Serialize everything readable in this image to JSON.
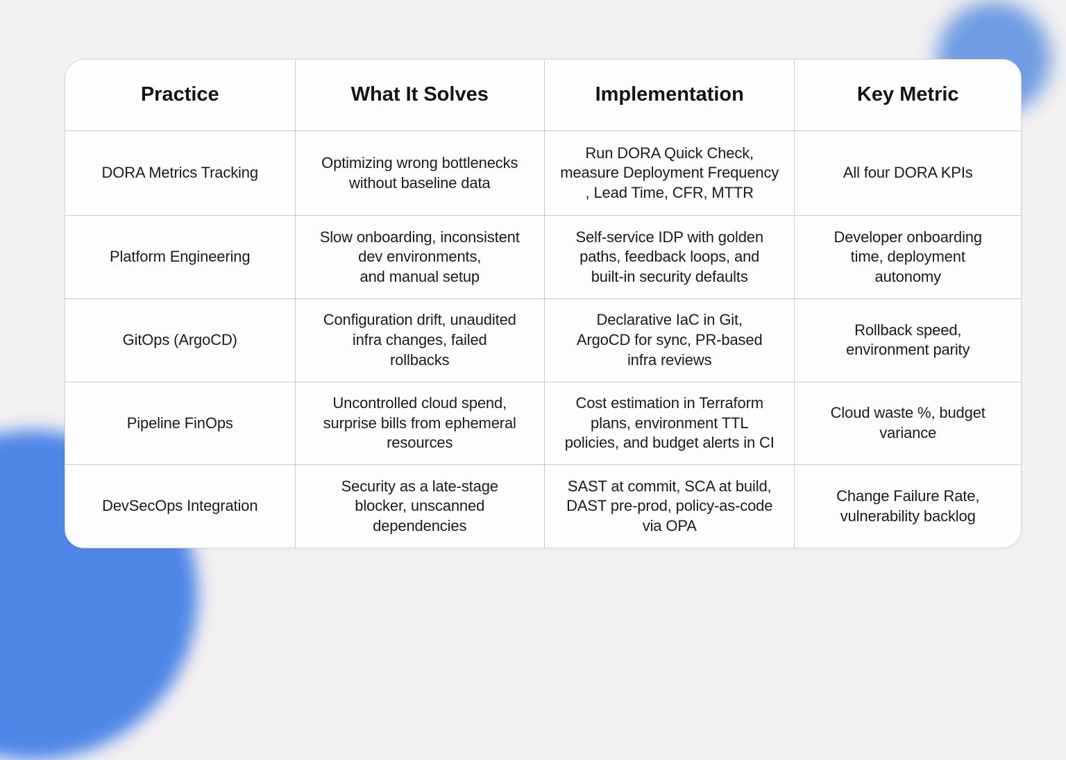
{
  "table": {
    "headers": [
      "Practice",
      "What It Solves",
      "Implementation",
      "Key Metric"
    ],
    "rows": [
      {
        "practice": "DORA Metrics Tracking",
        "solves": "Optimizing wrong bottlenecks\nwithout baseline data",
        "implementation": "Run DORA Quick Check,\nmeasure Deployment Frequency\n, Lead Time, CFR, MTTR",
        "metric": "All four DORA KPIs"
      },
      {
        "practice": "Platform Engineering",
        "solves": "Slow onboarding, inconsistent\ndev environments,\nand manual setup",
        "implementation": "Self-service IDP with golden\npaths, feedback loops, and\nbuilt-in security defaults",
        "metric": "Developer onboarding\ntime, deployment\nautonomy"
      },
      {
        "practice": "GitOps (ArgoCD)",
        "solves": "Configuration drift, unaudited\ninfra changes, failed\nrollbacks",
        "implementation": "Declarative IaC in Git,\nArgoCD for sync, PR-based\ninfra reviews",
        "metric": "Rollback speed,\nenvironment parity"
      },
      {
        "practice": "Pipeline FinOps",
        "solves": "Uncontrolled cloud spend,\nsurprise bills from ephemeral\nresources",
        "implementation": "Cost estimation in Terraform\nplans, environment TTL\npolicies, and budget alerts in CI",
        "metric": "Cloud waste %, budget\nvariance"
      },
      {
        "practice": "DevSecOps Integration",
        "solves": "Security as a late-stage\nblocker, unscanned\ndependencies",
        "implementation": "SAST at commit, SCA at build,\nDAST pre-prod, policy-as-code\nvia OPA",
        "metric": "Change Failure Rate,\nvulnerability backlog"
      }
    ]
  },
  "colors": {
    "background": "#f2f0f1",
    "card": "#fdfdfd",
    "grid_line": "#cccbcc",
    "text": "#1b1b1d",
    "blob_bottom_left": "#4e86e7",
    "blob_top_right": "#6f9ce2"
  }
}
